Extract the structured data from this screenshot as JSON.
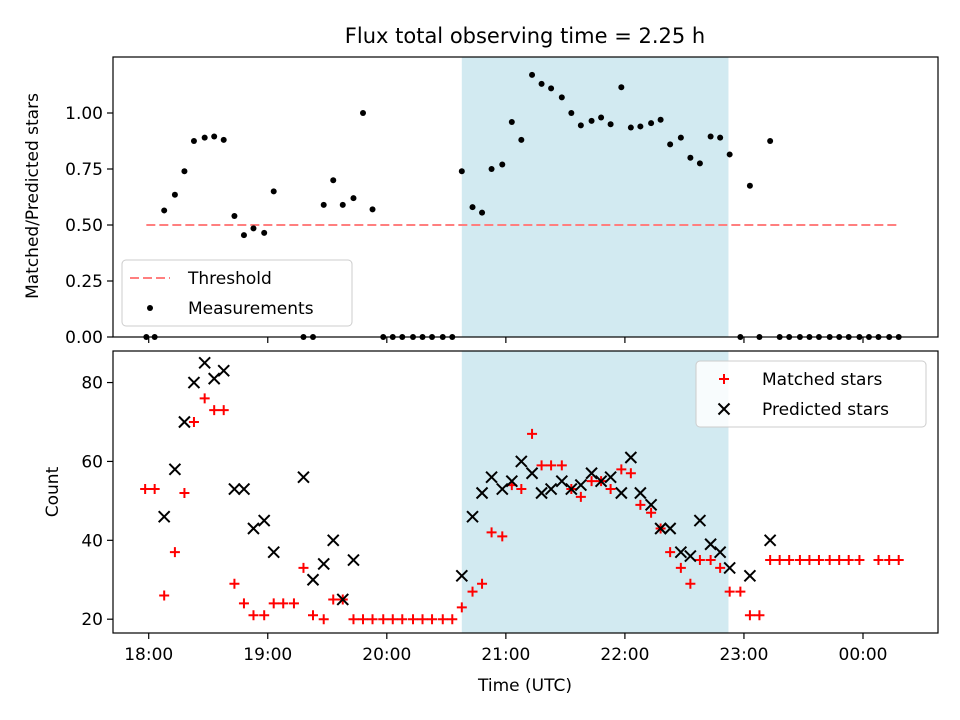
{
  "chart_data": [
    {
      "type": "scatter",
      "title": "Flux total observing time = 2.25 h",
      "xlabel": "",
      "ylabel": "Matched/Predicted stars",
      "x_unit": "hours UTC (continuing past midnight)",
      "xlim": [
        17.7,
        24.63
      ],
      "ylim": [
        0,
        1.25
      ],
      "yticks": [
        0,
        0.25,
        0.5,
        0.75,
        1.0
      ],
      "ytick_labels": [
        "0.00",
        "0.25",
        "0.50",
        "0.75",
        "1.00"
      ],
      "xticks": [
        18,
        19,
        20,
        21,
        22,
        23,
        24
      ],
      "xtick_labels": [
        "18:00",
        "19:00",
        "20:00",
        "21:00",
        "22:00",
        "23:00",
        "00:00"
      ],
      "show_xtick_labels": false,
      "observing_window": [
        20.63,
        22.87
      ],
      "window_color": "#add8e6",
      "threshold": {
        "name": "Threshold",
        "value": 0.5,
        "x_range": [
          17.98,
          24.3
        ],
        "color": "#ff7f7f"
      },
      "series": [
        {
          "name": "Measurements",
          "color": "#000000",
          "x": [
            17.98,
            18.05,
            18.13,
            18.22,
            18.3,
            18.38,
            18.47,
            18.55,
            18.63,
            18.72,
            18.8,
            18.88,
            18.97,
            19.05,
            19.3,
            19.38,
            19.47,
            19.55,
            19.63,
            19.72,
            19.8,
            19.88,
            19.97,
            20.05,
            20.13,
            20.22,
            20.3,
            20.38,
            20.47,
            20.55,
            20.63,
            20.72,
            20.8,
            20.88,
            20.97,
            21.05,
            21.13,
            21.22,
            21.3,
            21.38,
            21.47,
            21.55,
            21.63,
            21.72,
            21.8,
            21.88,
            21.97,
            22.05,
            22.13,
            22.22,
            22.3,
            22.38,
            22.47,
            22.55,
            22.63,
            22.72,
            22.8,
            22.88,
            22.97,
            23.05,
            23.13,
            23.22,
            23.3,
            23.38,
            23.47,
            23.55,
            23.63,
            23.72,
            23.8,
            23.88,
            23.97,
            24.05,
            24.13,
            24.22,
            24.3
          ],
          "y": [
            0,
            0,
            0.565,
            0.635,
            0.74,
            0.875,
            0.89,
            0.895,
            0.88,
            0.54,
            0.455,
            0.485,
            0.465,
            0.65,
            0.0,
            0.0,
            0.59,
            0.7,
            0.59,
            0.62,
            1.0,
            0.57,
            0,
            0,
            0,
            0,
            0,
            0,
            0,
            0,
            0.74,
            0.58,
            0.555,
            0.75,
            0.77,
            0.96,
            0.88,
            1.17,
            1.13,
            1.11,
            1.07,
            1.0,
            0.945,
            0.965,
            0.98,
            0.95,
            1.115,
            0.935,
            0.94,
            0.955,
            0.97,
            0.86,
            0.89,
            0.8,
            0.775,
            0.895,
            0.89,
            0.815,
            0,
            0.675,
            0,
            0.875,
            0,
            0,
            0,
            0,
            0,
            0,
            0,
            0,
            0,
            0,
            0,
            0,
            0
          ]
        }
      ],
      "legend": {
        "entries": [
          "Threshold",
          "Measurements"
        ],
        "placement": "lower-left"
      }
    },
    {
      "type": "scatter",
      "title": "",
      "xlabel": "Time (UTC)",
      "ylabel": "Count",
      "xlim": [
        17.7,
        24.63
      ],
      "ylim": [
        16.5,
        88
      ],
      "yticks": [
        20,
        40,
        60,
        80
      ],
      "ytick_labels": [
        "20",
        "40",
        "60",
        "80"
      ],
      "xticks": [
        18,
        19,
        20,
        21,
        22,
        23,
        24
      ],
      "xtick_labels": [
        "18:00",
        "19:00",
        "20:00",
        "21:00",
        "22:00",
        "23:00",
        "00:00"
      ],
      "observing_window": [
        20.63,
        22.87
      ],
      "window_color": "#add8e6",
      "series": [
        {
          "name": "Matched stars",
          "marker": "plus",
          "color": "#ff0000",
          "x": [
            17.97,
            18.05,
            18.13,
            18.22,
            18.3,
            18.38,
            18.47,
            18.55,
            18.63,
            18.72,
            18.8,
            18.88,
            18.97,
            19.05,
            19.13,
            19.22,
            19.3,
            19.38,
            19.47,
            19.55,
            19.63,
            19.72,
            19.8,
            19.88,
            19.97,
            20.05,
            20.13,
            20.22,
            20.3,
            20.38,
            20.47,
            20.55,
            20.63,
            20.72,
            20.8,
            20.88,
            20.97,
            21.05,
            21.13,
            21.22,
            21.3,
            21.38,
            21.47,
            21.55,
            21.63,
            21.72,
            21.8,
            21.88,
            21.97,
            22.05,
            22.13,
            22.22,
            22.3,
            22.38,
            22.47,
            22.55,
            22.63,
            22.72,
            22.8,
            22.88,
            22.97,
            23.05,
            23.13,
            23.22,
            23.3,
            23.38,
            23.47,
            23.55,
            23.63,
            23.72,
            23.8,
            23.88,
            23.97,
            24.13,
            24.22,
            24.3
          ],
          "y": [
            53,
            53,
            26,
            37,
            52,
            70,
            76,
            73,
            73,
            29,
            24,
            21,
            21,
            24,
            24,
            24,
            33,
            21,
            20,
            25,
            25,
            20,
            20,
            20,
            20,
            20,
            20,
            20,
            20,
            20,
            20,
            20,
            23,
            27,
            29,
            42,
            41,
            54,
            53,
            67,
            59,
            59,
            59,
            53,
            51,
            55,
            55,
            53,
            58,
            57,
            49,
            47,
            43,
            37,
            33,
            29,
            35,
            35,
            33,
            27,
            27,
            21,
            21,
            35,
            35,
            35,
            35,
            35,
            35,
            35,
            35,
            35,
            35,
            35,
            35,
            35
          ]
        },
        {
          "name": "Predicted stars",
          "marker": "x",
          "color": "#000000",
          "x": [
            18.13,
            18.22,
            18.3,
            18.38,
            18.47,
            18.55,
            18.63,
            18.72,
            18.8,
            18.88,
            18.97,
            19.05,
            19.3,
            19.38,
            19.47,
            19.55,
            19.63,
            19.72,
            20.63,
            20.72,
            20.8,
            20.88,
            20.97,
            21.05,
            21.13,
            21.22,
            21.3,
            21.38,
            21.47,
            21.55,
            21.63,
            21.72,
            21.8,
            21.88,
            21.97,
            22.05,
            22.13,
            22.22,
            22.3,
            22.38,
            22.47,
            22.55,
            22.63,
            22.72,
            22.8,
            22.88,
            23.05,
            23.22
          ],
          "y": [
            46,
            58,
            70,
            80,
            85,
            81,
            83,
            53,
            53,
            43,
            45,
            37,
            56,
            30,
            34,
            40,
            25,
            35,
            31,
            46,
            52,
            56,
            53,
            55,
            60,
            57,
            52,
            53,
            55,
            53,
            54,
            57,
            55,
            56,
            52,
            61,
            52,
            49,
            43,
            43,
            37,
            36,
            45,
            39,
            37,
            33,
            31,
            40
          ]
        }
      ],
      "legend": {
        "entries": [
          "Matched stars",
          "Predicted stars"
        ],
        "placement": "upper-right"
      }
    }
  ]
}
